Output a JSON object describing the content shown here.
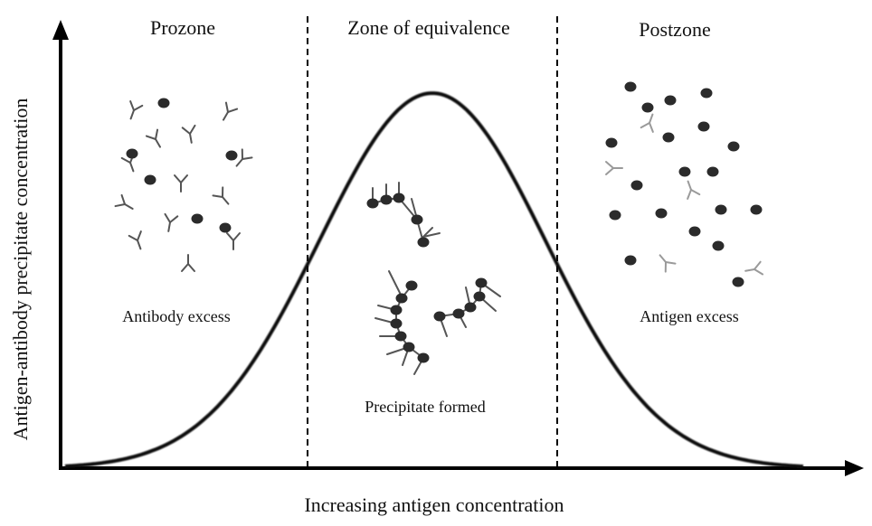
{
  "zones": {
    "prozone": "Prozone",
    "equivalence": "Zone of equivalence",
    "postzone": "Postzone"
  },
  "notes": {
    "antibody_excess": "Antibody excess",
    "precipitate_formed": "Precipitate formed",
    "antigen_excess": "Antigen excess"
  },
  "axes": {
    "x_label": "Increasing antigen concentration",
    "y_label": "Antigen-antibody precipitate concentration"
  },
  "colors": {
    "curve": "#111111",
    "antigen": "#2b2b2b",
    "antibody_dark": "#555555",
    "antibody_light": "#9a9a9a",
    "axis": "#000000"
  }
}
